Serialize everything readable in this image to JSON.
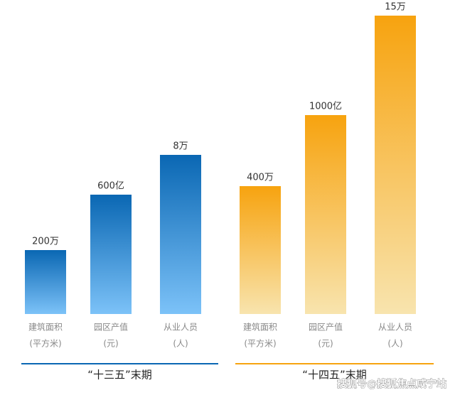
{
  "chart_data": {
    "type": "bar",
    "categories": [
      "建筑面积",
      "园区产值",
      "从业人员"
    ],
    "category_units": [
      "(平方米)",
      "(元)",
      "(人)"
    ],
    "series": [
      {
        "name": "“十三五”末期",
        "color": "#0a67b3",
        "color_light": "#7cc2f8",
        "values": [
          200,
          600,
          8
        ],
        "value_labels": [
          "200万",
          "600亿",
          "8万"
        ]
      },
      {
        "name": "“十四五”末期",
        "color": "#f7a30f",
        "color_light": "#f8e4ae",
        "values": [
          400,
          1000,
          15
        ],
        "value_labels": [
          "400万",
          "1000亿",
          "15万"
        ]
      }
    ]
  },
  "watermark": "搜狐号@搜狐焦点咸宁站"
}
